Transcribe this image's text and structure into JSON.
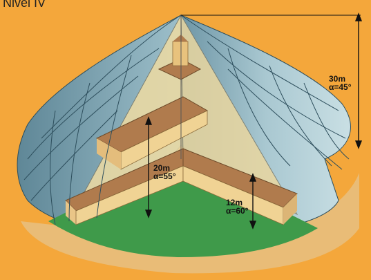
{
  "title": "Nivel IV",
  "colors": {
    "background": "#f4a73b",
    "shield_blue": "#8fb5c2",
    "ground_green": "#3f9a4a",
    "building_tan": "#f2d59a",
    "roof_brown": "#b07b4d"
  },
  "measurements": [
    {
      "height": "30m",
      "angle": "α=45°"
    },
    {
      "height": "20m",
      "angle": "α=55°"
    },
    {
      "height": "12m",
      "angle": "α=60°"
    }
  ]
}
